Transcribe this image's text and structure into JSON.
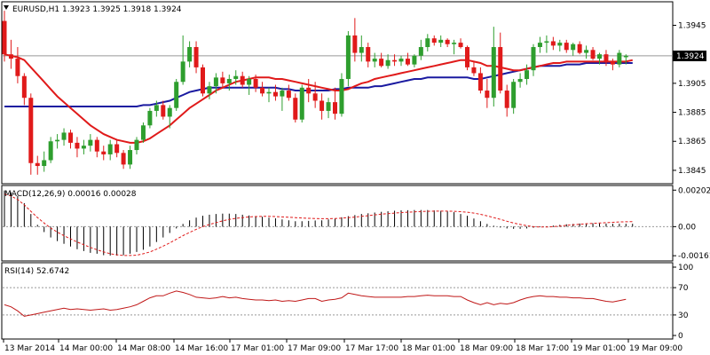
{
  "colors": {
    "background": "#ffffff",
    "frame": "#000000",
    "bull": "#2e9e2e",
    "bear": "#e01a1a",
    "ma_fast": "#e01a1a",
    "ma_slow": "#1a1aa0",
    "macd": "#000000",
    "macd_signal": "#e01a1a",
    "rsi": "#c01818",
    "level_line": "#999999",
    "price_tag_bg": "#000000",
    "price_tag_text": "#ffffff"
  },
  "chart_data": [
    {
      "type": "candlestick",
      "title": "EURUSD,H1  1.3923 1.3925 1.3918 1.3924",
      "ylim": [
        1.3837,
        1.396
      ],
      "y_ticks": [
        "1.3945",
        "1.3925",
        "1.3905",
        "1.3885",
        "1.3865",
        "1.3845"
      ],
      "current_price": "1.3924",
      "x_ticks": [
        "13 Mar 2014",
        "14 Mar 00:00",
        "14 Mar 08:00",
        "14 Mar 16:00",
        "17 Mar 01:00",
        "17 Mar 09:00",
        "17 Mar 17:00",
        "18 Mar 01:00",
        "18 Mar 09:00",
        "18 Mar 17:00",
        "19 Mar 01:00",
        "19 Mar 09:00"
      ],
      "candles": [
        [
          1.3948,
          1.3955,
          1.392,
          1.3925
        ],
        [
          1.3925,
          1.3935,
          1.3915,
          1.3922
        ],
        [
          1.3922,
          1.393,
          1.3905,
          1.391
        ],
        [
          1.391,
          1.3912,
          1.389,
          1.3895
        ],
        [
          1.3895,
          1.3898,
          1.3842,
          1.385
        ],
        [
          1.385,
          1.3855,
          1.3842,
          1.3848
        ],
        [
          1.3848,
          1.3858,
          1.3844,
          1.3852
        ],
        [
          1.3852,
          1.3868,
          1.385,
          1.3865
        ],
        [
          1.3865,
          1.387,
          1.386,
          1.3866
        ],
        [
          1.3866,
          1.3874,
          1.3862,
          1.3871
        ],
        [
          1.3871,
          1.3873,
          1.386,
          1.3864
        ],
        [
          1.3864,
          1.3868,
          1.3854,
          1.386
        ],
        [
          1.386,
          1.3866,
          1.3856,
          1.3862
        ],
        [
          1.3862,
          1.387,
          1.3858,
          1.3866
        ],
        [
          1.3866,
          1.3868,
          1.3854,
          1.3858
        ],
        [
          1.3858,
          1.3862,
          1.3852,
          1.3856
        ],
        [
          1.3856,
          1.3866,
          1.3852,
          1.3863
        ],
        [
          1.3863,
          1.3866,
          1.3854,
          1.3857
        ],
        [
          1.3857,
          1.3859,
          1.3846,
          1.3849
        ],
        [
          1.3849,
          1.3862,
          1.3846,
          1.3859
        ],
        [
          1.3859,
          1.3868,
          1.3856,
          1.3866
        ],
        [
          1.3866,
          1.3878,
          1.3864,
          1.3876
        ],
        [
          1.3876,
          1.3888,
          1.3874,
          1.3886
        ],
        [
          1.3886,
          1.3893,
          1.3882,
          1.389
        ],
        [
          1.389,
          1.3893,
          1.388,
          1.3882
        ],
        [
          1.3882,
          1.389,
          1.3874,
          1.3888
        ],
        [
          1.3888,
          1.3908,
          1.3886,
          1.3906
        ],
        [
          1.3906,
          1.3938,
          1.3904,
          1.392
        ],
        [
          1.392,
          1.3934,
          1.3916,
          1.393
        ],
        [
          1.393,
          1.3934,
          1.3912,
          1.3916
        ],
        [
          1.3916,
          1.3918,
          1.3896,
          1.3898
        ],
        [
          1.3898,
          1.3906,
          1.3894,
          1.3903
        ],
        [
          1.3903,
          1.3912,
          1.3898,
          1.3909
        ],
        [
          1.3909,
          1.3913,
          1.3902,
          1.3905
        ],
        [
          1.3905,
          1.3911,
          1.39,
          1.3908
        ],
        [
          1.3908,
          1.3914,
          1.3904,
          1.391
        ],
        [
          1.391,
          1.3913,
          1.3902,
          1.3904
        ],
        [
          1.3904,
          1.391,
          1.3897,
          1.3908
        ],
        [
          1.3908,
          1.3911,
          1.3899,
          1.3902
        ],
        [
          1.3902,
          1.3906,
          1.3896,
          1.3898
        ],
        [
          1.3898,
          1.3902,
          1.3892,
          1.3899
        ],
        [
          1.3899,
          1.3904,
          1.3893,
          1.3896
        ],
        [
          1.3896,
          1.3902,
          1.3886,
          1.39
        ],
        [
          1.39,
          1.3904,
          1.3893,
          1.3895
        ],
        [
          1.3895,
          1.3898,
          1.3878,
          1.388
        ],
        [
          1.388,
          1.3904,
          1.3878,
          1.3902
        ],
        [
          1.3902,
          1.3908,
          1.3892,
          1.3898
        ],
        [
          1.3898,
          1.3906,
          1.3888,
          1.3893
        ],
        [
          1.3893,
          1.3898,
          1.388,
          1.3886
        ],
        [
          1.3886,
          1.3895,
          1.3881,
          1.3892
        ],
        [
          1.3892,
          1.3902,
          1.388,
          1.3884
        ],
        [
          1.3884,
          1.3912,
          1.3882,
          1.3908
        ],
        [
          1.3908,
          1.3941,
          1.3903,
          1.3938
        ],
        [
          1.3938,
          1.395,
          1.392,
          1.3926
        ],
        [
          1.3926,
          1.3938,
          1.392,
          1.393
        ],
        [
          1.393,
          1.3933,
          1.3916,
          1.392
        ],
        [
          1.392,
          1.3926,
          1.3916,
          1.3922
        ],
        [
          1.3922,
          1.3926,
          1.3916,
          1.3917
        ],
        [
          1.3917,
          1.3925,
          1.3915,
          1.3921
        ],
        [
          1.3921,
          1.3925,
          1.3917,
          1.392
        ],
        [
          1.392,
          1.3924,
          1.3917,
          1.3922
        ],
        [
          1.3922,
          1.3926,
          1.3917,
          1.3918
        ],
        [
          1.3918,
          1.3925,
          1.3916,
          1.3924
        ],
        [
          1.3924,
          1.3935,
          1.3921,
          1.393
        ],
        [
          1.393,
          1.3939,
          1.3927,
          1.3936
        ],
        [
          1.3936,
          1.3938,
          1.3931,
          1.3933
        ],
        [
          1.3933,
          1.3938,
          1.393,
          1.3935
        ],
        [
          1.3935,
          1.3936,
          1.393,
          1.3932
        ],
        [
          1.3932,
          1.3935,
          1.3925,
          1.3933
        ],
        [
          1.3933,
          1.3936,
          1.3929,
          1.393
        ],
        [
          1.393,
          1.3931,
          1.3914,
          1.3916
        ],
        [
          1.3916,
          1.392,
          1.391,
          1.3912
        ],
        [
          1.3912,
          1.3916,
          1.3898,
          1.39
        ],
        [
          1.39,
          1.3908,
          1.3888,
          1.3895
        ],
        [
          1.3895,
          1.3944,
          1.3889,
          1.393
        ],
        [
          1.393,
          1.394,
          1.3898,
          1.39
        ],
        [
          1.39,
          1.3904,
          1.3882,
          1.3888
        ],
        [
          1.3888,
          1.3908,
          1.3884,
          1.3906
        ],
        [
          1.3906,
          1.3912,
          1.3902,
          1.3908
        ],
        [
          1.3908,
          1.3918,
          1.3904,
          1.3914
        ],
        [
          1.3914,
          1.3932,
          1.391,
          1.393
        ],
        [
          1.393,
          1.3937,
          1.3926,
          1.3933
        ],
        [
          1.3933,
          1.3938,
          1.3926,
          1.3934
        ],
        [
          1.3934,
          1.3937,
          1.3928,
          1.3931
        ],
        [
          1.3931,
          1.3935,
          1.3927,
          1.3933
        ],
        [
          1.3933,
          1.3935,
          1.3926,
          1.3928
        ],
        [
          1.3928,
          1.3933,
          1.3924,
          1.3932
        ],
        [
          1.3932,
          1.3934,
          1.3925,
          1.3926
        ],
        [
          1.3926,
          1.3931,
          1.3922,
          1.3928
        ],
        [
          1.3928,
          1.393,
          1.3921,
          1.3922
        ],
        [
          1.3922,
          1.3926,
          1.3918,
          1.3925
        ],
        [
          1.3925,
          1.3928,
          1.3917,
          1.392
        ],
        [
          1.392,
          1.3922,
          1.3914,
          1.3918
        ],
        [
          1.3918,
          1.3928,
          1.3916,
          1.3926
        ],
        [
          1.3923,
          1.3925,
          1.3918,
          1.3924
        ]
      ],
      "ma_fast": [
        1.3925,
        1.3924,
        1.3923,
        1.3921,
        1.3916,
        1.3911,
        1.3906,
        1.3901,
        1.3896,
        1.3892,
        1.3888,
        1.3884,
        1.388,
        1.3876,
        1.3873,
        1.387,
        1.3868,
        1.3866,
        1.3865,
        1.3864,
        1.3864,
        1.3865,
        1.3867,
        1.387,
        1.3873,
        1.3876,
        1.388,
        1.3884,
        1.3888,
        1.3891,
        1.3894,
        1.3897,
        1.39,
        1.3902,
        1.3904,
        1.3906,
        1.3907,
        1.3908,
        1.3909,
        1.3909,
        1.3909,
        1.3908,
        1.3908,
        1.3907,
        1.3906,
        1.3905,
        1.3904,
        1.3903,
        1.3902,
        1.3901,
        1.39,
        1.39,
        1.3901,
        1.3903,
        1.3905,
        1.3906,
        1.3908,
        1.3909,
        1.391,
        1.3911,
        1.3912,
        1.3913,
        1.3914,
        1.3915,
        1.3916,
        1.3917,
        1.3918,
        1.3919,
        1.392,
        1.3921,
        1.3921,
        1.392,
        1.3919,
        1.3917,
        1.3917,
        1.3916,
        1.3915,
        1.3914,
        1.3914,
        1.3915,
        1.3916,
        1.3917,
        1.3918,
        1.3919,
        1.3919,
        1.392,
        1.392,
        1.392,
        1.392,
        1.392,
        1.392,
        1.392,
        1.392,
        1.392,
        1.392,
        1.3921
      ],
      "ma_slow": [
        1.3889,
        1.3889,
        1.3889,
        1.3889,
        1.3889,
        1.3889,
        1.3889,
        1.3889,
        1.3889,
        1.3889,
        1.3889,
        1.3889,
        1.3889,
        1.3889,
        1.3889,
        1.3889,
        1.3889,
        1.3889,
        1.3889,
        1.3889,
        1.3889,
        1.389,
        1.389,
        1.3891,
        1.3892,
        1.3893,
        1.3895,
        1.3897,
        1.3899,
        1.39,
        1.3901,
        1.3902,
        1.3902,
        1.3902,
        1.3902,
        1.3902,
        1.3902,
        1.3902,
        1.3902,
        1.3902,
        1.3902,
        1.3902,
        1.3901,
        1.3901,
        1.39,
        1.39,
        1.39,
        1.39,
        1.39,
        1.39,
        1.3901,
        1.3901,
        1.3902,
        1.3902,
        1.3902,
        1.3902,
        1.3903,
        1.3903,
        1.3904,
        1.3905,
        1.3906,
        1.3907,
        1.3908,
        1.3908,
        1.3909,
        1.3909,
        1.3909,
        1.3909,
        1.3909,
        1.3909,
        1.3909,
        1.3908,
        1.3908,
        1.3909,
        1.391,
        1.3911,
        1.3912,
        1.3913,
        1.3914,
        1.3915,
        1.3916,
        1.3917,
        1.3917,
        1.3917,
        1.3917,
        1.3918,
        1.3918,
        1.3918,
        1.3919,
        1.3919,
        1.3919,
        1.3919,
        1.3919,
        1.3919,
        1.3919,
        1.3919
      ]
    },
    {
      "type": "histogram",
      "title": "MACD(12,26,9) 0.00016 0.00028",
      "ylim": [
        -0.0018,
        0.00218
      ],
      "y_ticks": [
        "0.00202",
        "0.00",
        "-0.00161"
      ],
      "histogram": [
        0.002,
        0.0019,
        0.0017,
        0.0013,
        0.0007,
        0.0001,
        -0.0003,
        -0.0006,
        -0.0008,
        -0.00095,
        -0.0011,
        -0.00125,
        -0.00135,
        -0.00145,
        -0.0015,
        -0.00158,
        -0.0016,
        -0.0016,
        -0.00158,
        -0.0015,
        -0.0014,
        -0.00128,
        -0.0011,
        -0.00085,
        -0.0006,
        -0.00035,
        -0.0001,
        0.00015,
        0.00035,
        0.0005,
        0.0006,
        0.00066,
        0.0007,
        0.00072,
        0.00072,
        0.0007,
        0.00066,
        0.00062,
        0.00058,
        0.00055,
        0.0005,
        0.00046,
        0.0004,
        0.00035,
        0.0003,
        0.0003,
        0.00032,
        0.00034,
        0.00035,
        0.0004,
        0.00046,
        0.00052,
        0.00058,
        0.00064,
        0.0007,
        0.00074,
        0.00078,
        0.00082,
        0.00085,
        0.00088,
        0.0009,
        0.00091,
        0.00092,
        0.00092,
        0.00092,
        0.0009,
        0.00088,
        0.00085,
        0.0008,
        0.0007,
        0.0006,
        0.00045,
        0.0003,
        0.00015,
        5e-05,
        -5e-05,
        -0.0001,
        -0.00012,
        -0.00012,
        -0.0001,
        -6e-05,
        -2e-05,
        2e-05,
        6e-05,
        0.0001,
        0.00013,
        0.00015,
        0.00017,
        0.00018,
        0.00018,
        0.00018,
        0.00017,
        0.00016,
        0.00016,
        0.00016,
        0.00016
      ],
      "signal": [
        0.0018,
        0.0017,
        0.0015,
        0.0012,
        0.00085,
        0.0005,
        0.0002,
        -8e-05,
        -0.0003,
        -0.0005,
        -0.00068,
        -0.00085,
        -0.001,
        -0.00115,
        -0.00128,
        -0.0014,
        -0.0015,
        -0.00156,
        -0.0016,
        -0.0016,
        -0.00158,
        -0.0015,
        -0.0014,
        -0.00125,
        -0.00108,
        -0.0009,
        -0.0007,
        -0.0005,
        -0.00032,
        -0.00015,
        0.0,
        0.00012,
        0.00022,
        0.00032,
        0.0004,
        0.00046,
        0.0005,
        0.00054,
        0.00056,
        0.00057,
        0.00057,
        0.00056,
        0.00054,
        0.00052,
        0.0005,
        0.00048,
        0.00046,
        0.00045,
        0.00044,
        0.00044,
        0.00045,
        0.00047,
        0.0005,
        0.00053,
        0.00057,
        0.00061,
        0.00065,
        0.00069,
        0.00072,
        0.00075,
        0.00078,
        0.0008,
        0.00082,
        0.00084,
        0.00085,
        0.00086,
        0.00086,
        0.00086,
        0.00085,
        0.00083,
        0.0008,
        0.00075,
        0.00068,
        0.0006,
        0.0005,
        0.0004,
        0.0003,
        0.0002,
        0.00012,
        5e-05,
        0.0,
        -2e-05,
        -2e-05,
        0.0,
        3e-05,
        7e-05,
        0.0001,
        0.00013,
        0.00016,
        0.00018,
        0.0002,
        0.00022,
        0.00024,
        0.00026,
        0.00027,
        0.00028
      ]
    },
    {
      "type": "line",
      "title": "RSI(14) 52.6742",
      "ylim": [
        0,
        100
      ],
      "y_ticks": [
        "100",
        "70",
        "30",
        "0"
      ],
      "levels": [
        70,
        30
      ],
      "values": [
        45,
        42,
        36,
        28,
        30,
        32,
        34,
        36,
        38,
        40,
        38,
        39,
        38,
        37,
        38,
        39,
        37,
        38,
        40,
        42,
        45,
        50,
        55,
        58,
        58,
        62,
        65,
        63,
        60,
        56,
        55,
        54,
        55,
        57,
        55,
        56,
        54,
        53,
        52,
        52,
        51,
        52,
        50,
        51,
        50,
        52,
        54,
        54,
        50,
        52,
        53,
        55,
        62,
        60,
        58,
        57,
        56,
        56,
        56,
        56,
        56,
        57,
        57,
        58,
        59,
        58,
        58,
        58,
        57,
        57,
        52,
        48,
        45,
        48,
        45,
        47,
        46,
        48,
        52,
        55,
        57,
        58,
        57,
        57,
        56,
        56,
        55,
        55,
        54,
        54,
        52,
        50,
        49,
        51,
        53
      ]
    }
  ]
}
